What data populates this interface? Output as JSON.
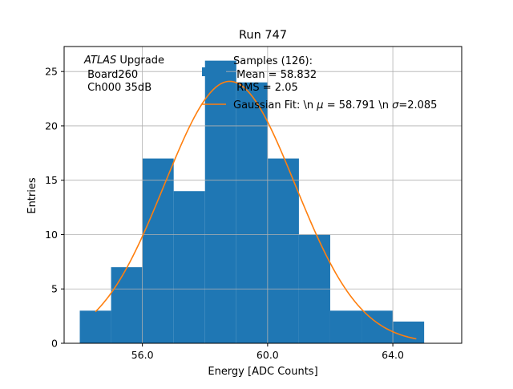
{
  "chart_data": {
    "type": "bar",
    "title": "Run 747",
    "xlabel": "Energy [ADC Counts]",
    "ylabel": "Entries",
    "xlim": [
      53.5,
      66.2
    ],
    "ylim": [
      0,
      27.3
    ],
    "xticks": [
      56.0,
      60.0,
      64.0
    ],
    "xtick_labels": [
      "56.0",
      "60.0",
      "64.0"
    ],
    "yticks": [
      0,
      5,
      10,
      15,
      20,
      25
    ],
    "ytick_labels": [
      "0",
      "5",
      "10",
      "15",
      "20",
      "25"
    ],
    "grid": true,
    "bar_color": "#1f77b4",
    "fit_color": "#ff7f0e",
    "bins": [
      {
        "x0": 54.0,
        "x1": 55.0,
        "count": 3
      },
      {
        "x0": 55.0,
        "x1": 56.0,
        "count": 7
      },
      {
        "x0": 56.0,
        "x1": 57.0,
        "count": 17
      },
      {
        "x0": 57.0,
        "x1": 58.0,
        "count": 14
      },
      {
        "x0": 58.0,
        "x1": 59.0,
        "count": 26
      },
      {
        "x0": 59.0,
        "x1": 60.0,
        "count": 24
      },
      {
        "x0": 60.0,
        "x1": 61.0,
        "count": 17
      },
      {
        "x0": 61.0,
        "x1": 62.0,
        "count": 10
      },
      {
        "x0": 62.0,
        "x1": 63.0,
        "count": 3
      },
      {
        "x0": 63.0,
        "x1": 64.0,
        "count": 3
      },
      {
        "x0": 64.0,
        "x1": 65.0,
        "count": 2
      }
    ],
    "fit": {
      "mu": 58.791,
      "sigma": 2.085,
      "amplitude": 24.1,
      "x_range": [
        54.5,
        64.75
      ]
    },
    "annotation": {
      "atlas_italic": "ATLAS",
      "atlas_rest": " Upgrade",
      "line2": " Board260",
      "line3": " Ch000 35dB"
    },
    "legend": {
      "placement": "top-right",
      "samples_line1": "Samples (126):",
      "samples_line2": " Mean = 58.832",
      "samples_line3": " RMS = 2.05",
      "fit_prefix": "Gaussian Fit: \\n ",
      "fit_mu_symbol": "μ",
      "fit_mid": " = 58.791 \\n ",
      "fit_sigma_symbol": "σ",
      "fit_suffix": "=2.085"
    }
  }
}
